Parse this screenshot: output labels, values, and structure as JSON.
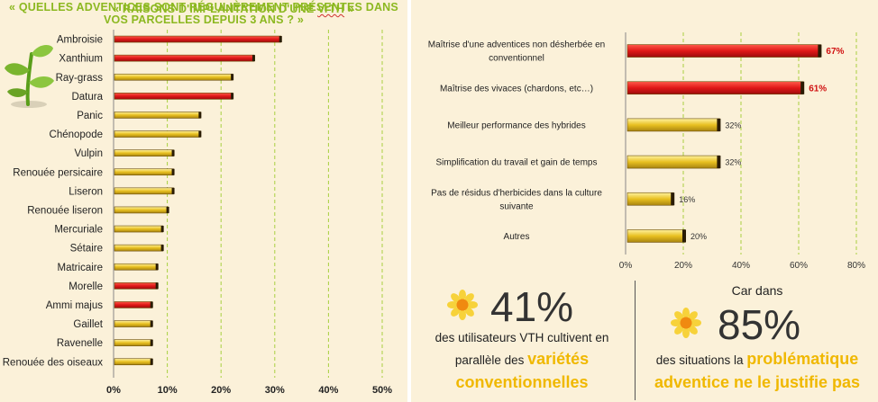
{
  "left_title_line1": "« QUELLES ADVENTICES SONT RÉGULIÈREMENT PRÉSENTES DANS",
  "left_title_line2": "VOS PARCELLES DEPUIS 3 ANS ? »",
  "right_title_prefix": "« RAISONS D'IMPLANTATION D'UNE ",
  "right_title_vth": "VrTH",
  "right_title_suffix": " »",
  "colors": {
    "red": "#e01818",
    "gold": "#e8c020",
    "title_green": "#8cb820",
    "panel_bg": "#fbf1d9",
    "highlight": "#f0b800"
  },
  "icons": [
    "plant-sprout-icon",
    "sun-flower-icon"
  ],
  "chart_data": [
    {
      "type": "bar",
      "orientation": "horizontal",
      "categories": [
        "Ambroisie",
        "Xanthium",
        "Ray-grass",
        "Datura",
        "Panic",
        "Chénopode",
        "Vulpin",
        "Renouée persicaire",
        "Liseron",
        "Renouée liseron",
        "Mercuriale",
        "Sétaire",
        "Matricaire",
        "Morelle",
        "Ammi majus",
        "Gaillet",
        "Ravenelle",
        "Renouée des oiseaux"
      ],
      "values": [
        31,
        26,
        22,
        22,
        16,
        16,
        11,
        11,
        11,
        10,
        9,
        9,
        8,
        8,
        7,
        7,
        7,
        7
      ],
      "bar_colors": [
        "red",
        "red",
        "gold",
        "red",
        "gold",
        "gold",
        "gold",
        "gold",
        "gold",
        "gold",
        "gold",
        "gold",
        "gold",
        "red",
        "red",
        "gold",
        "gold",
        "gold"
      ],
      "xlim": [
        0,
        50
      ],
      "ticks": [
        "0%",
        "10%",
        "20%",
        "30%",
        "40%",
        "50%"
      ],
      "grid": "vertical dashed"
    },
    {
      "type": "bar",
      "orientation": "horizontal",
      "categories": [
        [
          "Maîtrise d'une adventices non désherbée en",
          "conventionnel"
        ],
        [
          "Maîtrise des vivaces (chardons, etc…)"
        ],
        [
          "Meilleur performance des hybrides"
        ],
        [
          "Simplification du travail et gain de temps"
        ],
        [
          "Pas de résidus d'herbicides dans la culture",
          "suivante"
        ],
        [
          "Autres"
        ]
      ],
      "values": [
        67,
        61,
        32,
        32,
        16,
        20
      ],
      "labels": [
        "67%",
        "61%",
        "32%",
        "32%",
        "16%",
        "20%"
      ],
      "bar_colors": [
        "red",
        "red",
        "gold",
        "gold",
        "gold",
        "gold"
      ],
      "xlim": [
        0,
        80
      ],
      "ticks": [
        "0%",
        "20%",
        "40%",
        "60%",
        "80%"
      ],
      "grid": "vertical dashed"
    }
  ],
  "info_left": {
    "percent": "41%",
    "line1": "des utilisateurs VTH cultivent en",
    "line2_plain": "parallèle des ",
    "line2_highlight": "variétés",
    "line3_highlight": "conventionnelles"
  },
  "info_right": {
    "heading_line1": "Car dans",
    "percent": "85%",
    "line1_plain": "des situations la ",
    "line1_highlight": "problématique",
    "line2_highlight": "adventice ne le justifie pas"
  }
}
